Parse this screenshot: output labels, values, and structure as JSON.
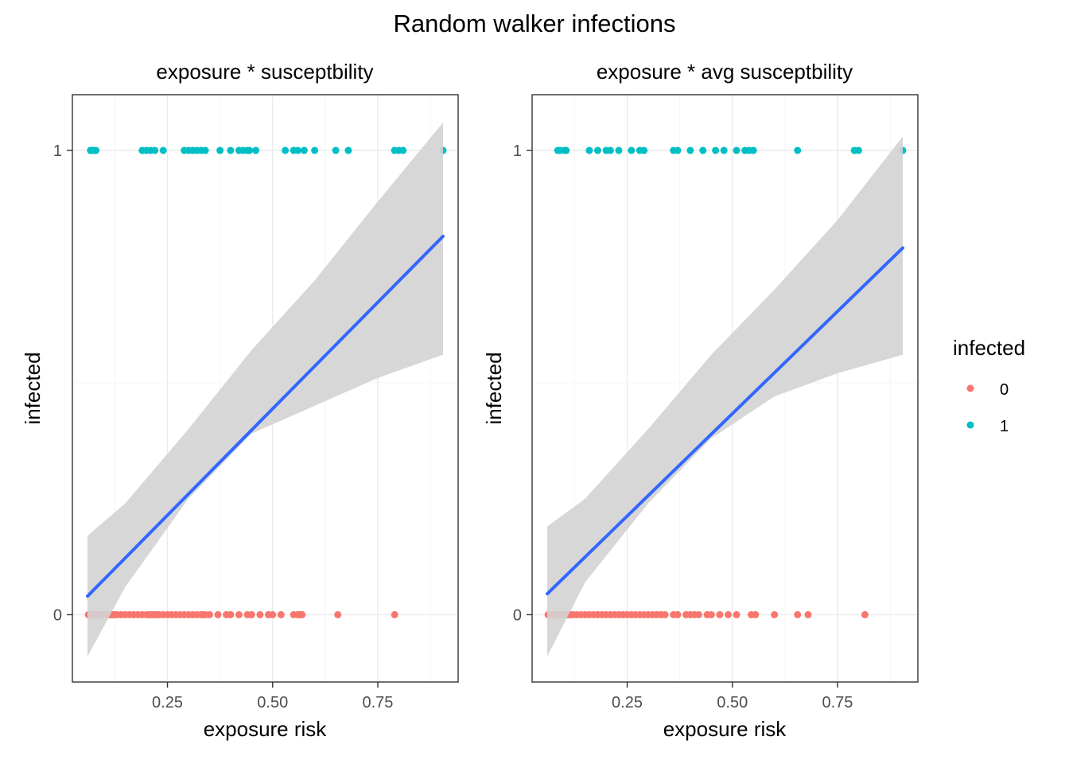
{
  "title": "Random walker infections",
  "legend": {
    "title": "infected",
    "entries": [
      {
        "label": "0",
        "color": "#F8766D"
      },
      {
        "label": "1",
        "color": "#00BFC4"
      }
    ]
  },
  "colors": {
    "grid_major": "#EBEBEB",
    "grid_minor": "#F5F5F5",
    "panel_border": "#333333",
    "ribbon": "#D3D3D3",
    "fit_line": "#3366FF",
    "tick": "#333333"
  },
  "chart_data": [
    {
      "type": "scatter",
      "subtitle": "exposure * susceptbility",
      "xlabel": "exposure risk",
      "ylabel": "infected",
      "xlim": [
        0.024,
        0.941
      ],
      "ylim": [
        -0.145,
        1.12
      ],
      "x_ticks": [
        0.25,
        0.5,
        0.75
      ],
      "x_tick_labels": [
        "0.25",
        "0.50",
        "0.75"
      ],
      "x_minor": [
        0.125,
        0.375,
        0.625,
        0.875
      ],
      "y_ticks": [
        0,
        1
      ],
      "y_tick_labels": [
        "0",
        "1"
      ],
      "y_minor": [
        0.5
      ],
      "series": [
        {
          "name": "0",
          "y": 0,
          "x": [
            0.062,
            0.064,
            0.066,
            0.068,
            0.07,
            0.072,
            0.074,
            0.076,
            0.078,
            0.08,
            0.082,
            0.085,
            0.088,
            0.091,
            0.094,
            0.097,
            0.1,
            0.104,
            0.108,
            0.112,
            0.116,
            0.12,
            0.125,
            0.13,
            0.14,
            0.15,
            0.16,
            0.17,
            0.18,
            0.19,
            0.2,
            0.205,
            0.21,
            0.215,
            0.22,
            0.225,
            0.23,
            0.24,
            0.25,
            0.26,
            0.27,
            0.28,
            0.29,
            0.3,
            0.31,
            0.32,
            0.33,
            0.335,
            0.34,
            0.35,
            0.37,
            0.39,
            0.4,
            0.42,
            0.44,
            0.45,
            0.47,
            0.49,
            0.5,
            0.52,
            0.55,
            0.56,
            0.565,
            0.57,
            0.655,
            0.79
          ]
        },
        {
          "name": "1",
          "y": 1,
          "x": [
            0.067,
            0.07,
            0.073,
            0.075,
            0.08,
            0.19,
            0.2,
            0.21,
            0.22,
            0.24,
            0.29,
            0.3,
            0.31,
            0.32,
            0.33,
            0.34,
            0.375,
            0.4,
            0.42,
            0.43,
            0.44,
            0.445,
            0.46,
            0.53,
            0.55,
            0.56,
            0.575,
            0.6,
            0.65,
            0.68,
            0.79,
            0.8,
            0.81,
            0.905
          ]
        }
      ],
      "fit": {
        "x0": 0.06,
        "y0": 0.04,
        "x1": 0.905,
        "y1": 0.815
      },
      "ribbon": {
        "x": [
          0.06,
          0.15,
          0.3,
          0.45,
          0.6,
          0.75,
          0.905
        ],
        "lo": [
          -0.09,
          0.06,
          0.25,
          0.39,
          0.45,
          0.51,
          0.56
        ],
        "hi": [
          0.17,
          0.24,
          0.4,
          0.57,
          0.72,
          0.89,
          1.06
        ]
      }
    },
    {
      "type": "scatter",
      "subtitle": "exposure *  avg susceptbility",
      "xlabel": "exposure risk",
      "ylabel": "infected",
      "xlim": [
        0.024,
        0.941
      ],
      "ylim": [
        -0.145,
        1.12
      ],
      "x_ticks": [
        0.25,
        0.5,
        0.75
      ],
      "x_tick_labels": [
        "0.25",
        "0.50",
        "0.75"
      ],
      "x_minor": [
        0.125,
        0.375,
        0.625,
        0.875
      ],
      "y_ticks": [
        0,
        1
      ],
      "y_tick_labels": [
        "0",
        "1"
      ],
      "y_minor": [
        0.5
      ],
      "series": [
        {
          "name": "0",
          "y": 0,
          "x": [
            0.062,
            0.064,
            0.066,
            0.068,
            0.07,
            0.072,
            0.074,
            0.076,
            0.078,
            0.08,
            0.082,
            0.085,
            0.088,
            0.091,
            0.094,
            0.097,
            0.1,
            0.105,
            0.11,
            0.115,
            0.12,
            0.13,
            0.14,
            0.15,
            0.16,
            0.17,
            0.18,
            0.19,
            0.2,
            0.21,
            0.22,
            0.23,
            0.24,
            0.25,
            0.26,
            0.27,
            0.28,
            0.29,
            0.3,
            0.31,
            0.32,
            0.33,
            0.34,
            0.36,
            0.37,
            0.39,
            0.4,
            0.41,
            0.42,
            0.44,
            0.45,
            0.47,
            0.49,
            0.51,
            0.545,
            0.555,
            0.6,
            0.655,
            0.68,
            0.815
          ]
        },
        {
          "name": "1",
          "y": 1,
          "x": [
            0.085,
            0.09,
            0.1,
            0.105,
            0.16,
            0.18,
            0.2,
            0.21,
            0.23,
            0.26,
            0.28,
            0.29,
            0.36,
            0.37,
            0.4,
            0.43,
            0.46,
            0.48,
            0.51,
            0.53,
            0.54,
            0.55,
            0.655,
            0.79,
            0.8,
            0.905
          ]
        }
      ],
      "fit": {
        "x0": 0.06,
        "y0": 0.045,
        "x1": 0.905,
        "y1": 0.79
      },
      "ribbon": {
        "x": [
          0.06,
          0.15,
          0.3,
          0.45,
          0.6,
          0.75,
          0.905
        ],
        "lo": [
          -0.09,
          0.07,
          0.24,
          0.38,
          0.47,
          0.52,
          0.56
        ],
        "hi": [
          0.19,
          0.25,
          0.4,
          0.56,
          0.7,
          0.85,
          1.03
        ]
      }
    }
  ]
}
